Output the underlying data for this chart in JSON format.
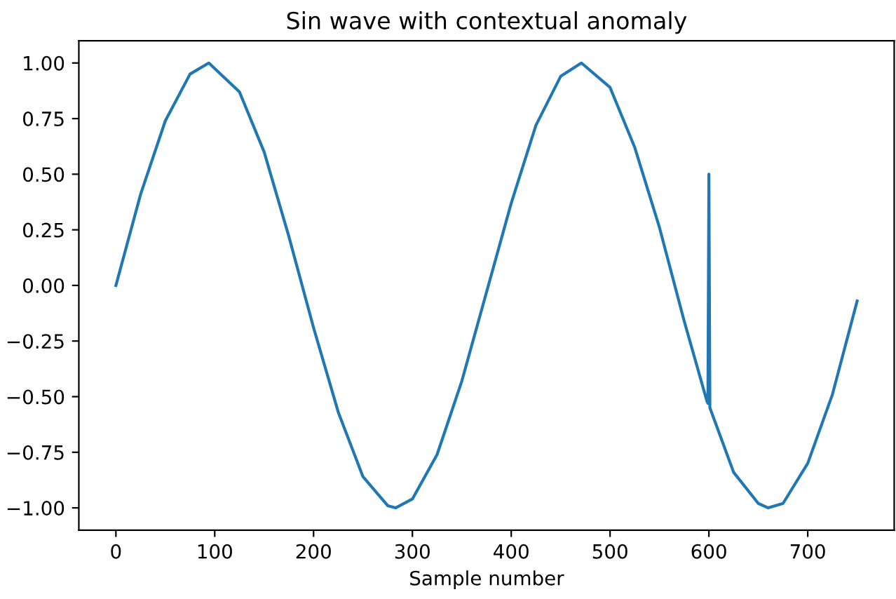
{
  "chart_data": {
    "type": "line",
    "title": "Sin wave with contextual anomaly",
    "xlabel": "Sample number",
    "x": [
      0,
      25,
      50,
      75,
      94,
      125,
      150,
      175,
      200,
      225,
      250,
      275,
      283,
      300,
      325,
      350,
      375,
      400,
      425,
      450,
      471,
      500,
      525,
      550,
      575,
      598,
      599,
      600,
      601,
      625,
      650,
      660,
      675,
      700,
      725,
      750
    ],
    "series": [
      {
        "color": "#1f77b4",
        "values": [
          0,
          0.41,
          0.74,
          0.95,
          1.0,
          0.87,
          0.6,
          0.22,
          -0.19,
          -0.57,
          -0.86,
          -0.99,
          -1.0,
          -0.96,
          -0.76,
          -0.43,
          -0.03,
          0.37,
          0.72,
          0.94,
          1.0,
          0.89,
          0.62,
          0.26,
          -0.16,
          -0.52,
          -0.53,
          0.5,
          -0.55,
          -0.84,
          -0.98,
          -1.0,
          -0.98,
          -0.8,
          -0.49,
          -0.07
        ]
      }
    ],
    "xlim": [
      -37.5,
      787.5
    ],
    "ylim": [
      -1.1,
      1.1
    ],
    "xticks": [
      0,
      100,
      200,
      300,
      400,
      500,
      600,
      700
    ],
    "yticks": [
      {
        "value": -1,
        "label": "−1.00"
      },
      {
        "value": -0.75,
        "label": "−0.75"
      },
      {
        "value": -0.5,
        "label": "−0.50"
      },
      {
        "value": -0.25,
        "label": "−0.25"
      },
      {
        "value": 0,
        "label": "0.00"
      },
      {
        "value": 0.25,
        "label": "0.25"
      },
      {
        "value": 0.5,
        "label": "0.50"
      },
      {
        "value": 0.75,
        "label": "0.75"
      },
      {
        "value": 1,
        "label": "1.00"
      }
    ],
    "grid": false,
    "legend": false
  }
}
